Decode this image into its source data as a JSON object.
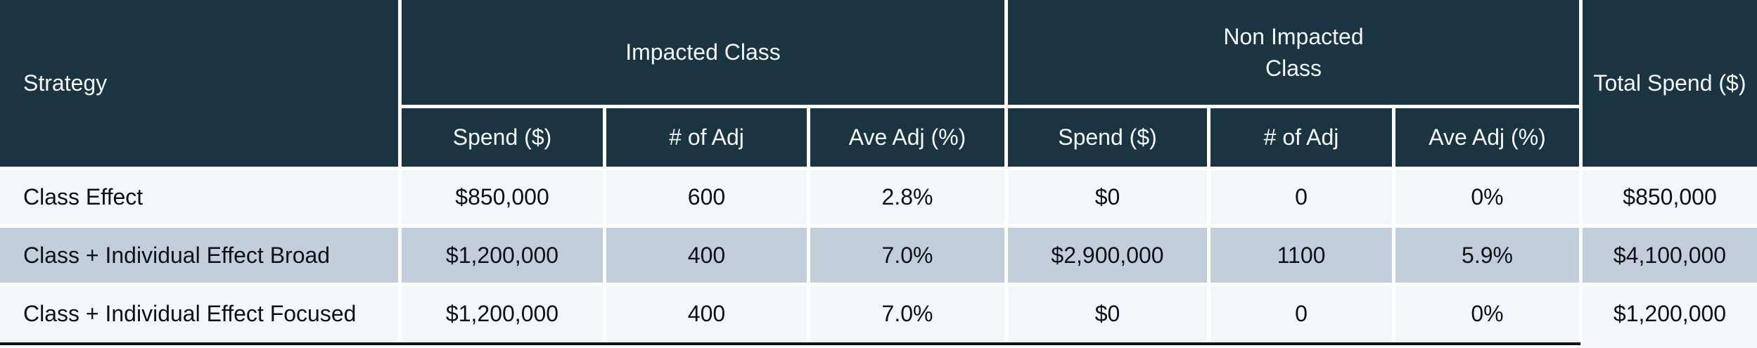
{
  "chart_data": {
    "type": "table",
    "header": {
      "strategy": "Strategy",
      "impacted_group": "Impacted Class",
      "non_impacted_group": "Non Impacted\nClass",
      "total": "Total Spend ($)",
      "impacted_sub": [
        "Spend ($)",
        "# of Adj",
        "Ave Adj (%)"
      ],
      "non_impacted_sub": [
        "Spend ($)",
        "# of Adj",
        "Ave Adj (%)"
      ]
    },
    "rows": [
      {
        "strategy": "Class Effect",
        "impacted_spend": "$850,000",
        "impacted_adj": "600",
        "impacted_ave": "2.8%",
        "non_impacted_spend": "$0",
        "non_impacted_adj": "0",
        "non_impacted_ave": "0%",
        "total_spend": "$850,000",
        "highlighted": false
      },
      {
        "strategy": "Class + Individual Effect Broad",
        "impacted_spend": "$1,200,000",
        "impacted_adj": "400",
        "impacted_ave": "7.0%",
        "non_impacted_spend": "$2,900,000",
        "non_impacted_adj": "1100",
        "non_impacted_ave": "5.9%",
        "total_spend": "$4,100,000",
        "highlighted": true
      },
      {
        "strategy": "Class + Individual Effect Focused",
        "impacted_spend": "$1,200,000",
        "impacted_adj": "400",
        "impacted_ave": "7.0%",
        "non_impacted_spend": "$0",
        "non_impacted_adj": "0",
        "non_impacted_ave": "0%",
        "total_spend": "$1,200,000",
        "highlighted": false
      }
    ],
    "colors": {
      "header_bg": "#1a3441",
      "header_text": "#f5f8fa",
      "row_light_bg": "#f4f7f9",
      "row_highlight_bg": "#c3cedb",
      "body_text": "#0b1116",
      "bottom_border": "#0e161d",
      "gap_lines": "#ffffff"
    }
  }
}
